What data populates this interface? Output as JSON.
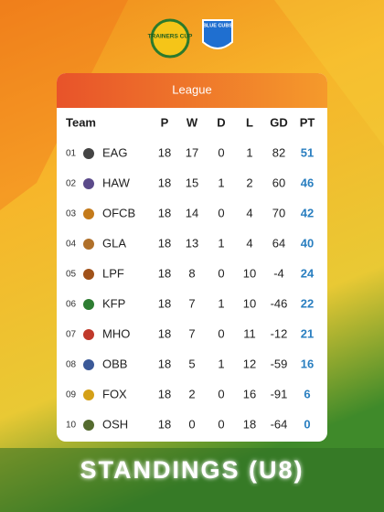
{
  "logos": [
    "TRAINERS CUP",
    "BLUE CUBS"
  ],
  "table": {
    "title": "League",
    "columns": [
      "Team",
      "P",
      "W",
      "D",
      "L",
      "GD",
      "PT"
    ],
    "rows": [
      {
        "rank": "01",
        "team": "EAG",
        "stats": [
          18,
          17,
          0,
          1,
          82,
          51
        ]
      },
      {
        "rank": "02",
        "team": "HAW",
        "stats": [
          18,
          15,
          1,
          2,
          60,
          46
        ]
      },
      {
        "rank": "03",
        "team": "OFCB",
        "stats": [
          18,
          14,
          0,
          4,
          70,
          42
        ]
      },
      {
        "rank": "04",
        "team": "GLA",
        "stats": [
          18,
          13,
          1,
          4,
          64,
          40
        ]
      },
      {
        "rank": "05",
        "team": "LPF",
        "stats": [
          18,
          8,
          0,
          10,
          -4,
          24
        ]
      },
      {
        "rank": "06",
        "team": "KFP",
        "stats": [
          18,
          7,
          1,
          10,
          -46,
          22
        ]
      },
      {
        "rank": "07",
        "team": "MHO",
        "stats": [
          18,
          7,
          0,
          11,
          -12,
          21
        ]
      },
      {
        "rank": "08",
        "team": "OBB",
        "stats": [
          18,
          5,
          1,
          12,
          -59,
          16
        ]
      },
      {
        "rank": "09",
        "team": "FOX",
        "stats": [
          18,
          2,
          0,
          16,
          -91,
          6
        ]
      },
      {
        "rank": "10",
        "team": "OSH",
        "stats": [
          18,
          0,
          0,
          18,
          -64,
          0
        ]
      }
    ]
  },
  "footer": "STANDINGS (U8)"
}
